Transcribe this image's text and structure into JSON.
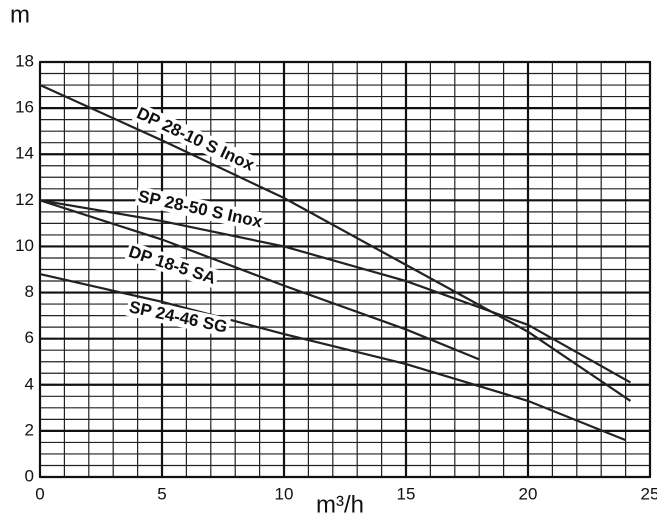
{
  "chart_data": {
    "type": "line",
    "y_label": "m",
    "x_label": "m³/h",
    "xlim": [
      0,
      25
    ],
    "xticks": [
      0,
      5,
      10,
      15,
      20,
      25
    ],
    "ylim": [
      0,
      18
    ],
    "yticks": [
      0,
      2,
      4,
      6,
      8,
      10,
      12,
      14,
      16,
      18
    ],
    "grid": true,
    "legend": "inline",
    "series": [
      {
        "name": "DP 28-10 S Inox",
        "color": "#222222",
        "x": [
          0,
          5,
          10,
          15,
          20,
          24.2
        ],
        "values": [
          17,
          14.6,
          12.1,
          9.2,
          6.3,
          3.3
        ]
      },
      {
        "name": "SP 28-50 S Inox",
        "color": "#222222",
        "x": [
          0,
          5,
          10,
          15,
          20,
          24.2
        ],
        "values": [
          12,
          11.1,
          10,
          8.5,
          6.6,
          4.1
        ]
      },
      {
        "name": "DP 18-5 SA",
        "color": "#222222",
        "x": [
          0,
          5,
          10,
          15,
          18
        ],
        "values": [
          12,
          10.3,
          8.3,
          6.4,
          5.1
        ]
      },
      {
        "name": "SP 24-46 SG",
        "color": "#222222",
        "x": [
          0,
          5,
          10,
          15,
          20,
          24
        ],
        "values": [
          8.8,
          7.6,
          6.2,
          4.9,
          3.3,
          1.6
        ]
      }
    ]
  }
}
